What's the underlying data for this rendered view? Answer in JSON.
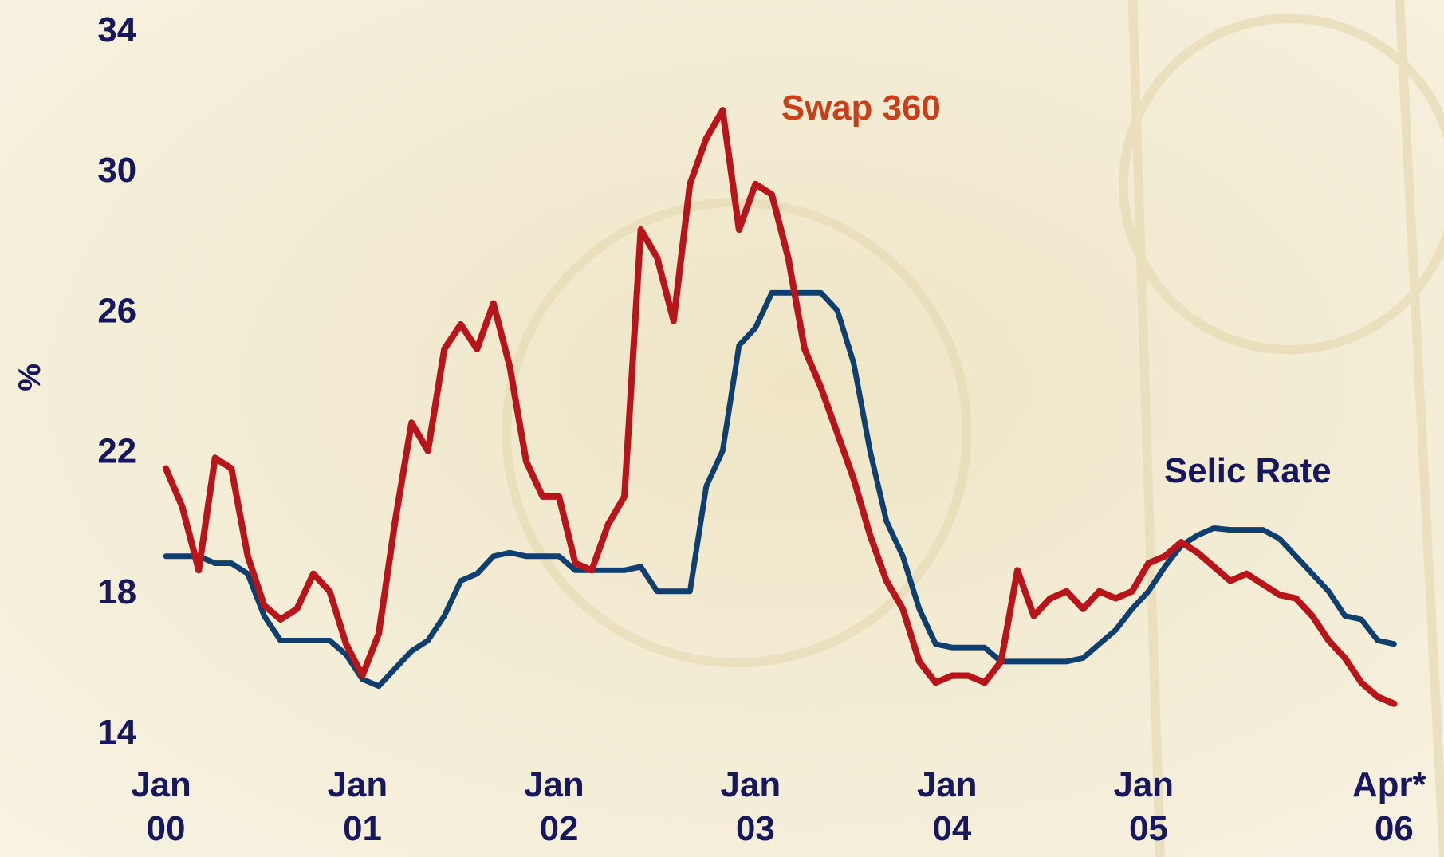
{
  "chart_data": {
    "type": "line",
    "y_label": "%",
    "categories": [
      "Jan 00",
      null,
      null,
      null,
      null,
      null,
      null,
      null,
      null,
      null,
      null,
      null,
      "Jan 01",
      null,
      null,
      null,
      null,
      null,
      null,
      null,
      null,
      null,
      null,
      null,
      "Jan 02",
      null,
      null,
      null,
      null,
      null,
      null,
      null,
      null,
      null,
      null,
      null,
      "Jan 03",
      null,
      null,
      null,
      null,
      null,
      null,
      null,
      null,
      null,
      null,
      null,
      "Jan 04",
      null,
      null,
      null,
      null,
      null,
      null,
      null,
      null,
      null,
      null,
      null,
      "Jan 05",
      null,
      null,
      null,
      null,
      null,
      null,
      null,
      null,
      null,
      null,
      null,
      null,
      null,
      null,
      "Apr* 06"
    ],
    "series": [
      {
        "name": "Selic Rate",
        "color": "#0e3f6e",
        "label_color": "#17175e",
        "values": [
          19,
          19,
          19,
          18.8,
          18.8,
          18.5,
          17.3,
          16.6,
          16.6,
          16.6,
          16.6,
          16.2,
          15.5,
          15.3,
          15.8,
          16.3,
          16.6,
          17.3,
          18.3,
          18.5,
          19,
          19.1,
          19,
          19,
          19,
          18.6,
          18.6,
          18.6,
          18.6,
          18.7,
          18,
          18,
          18,
          21,
          22,
          25,
          25.5,
          26.5,
          26.5,
          26.5,
          26.5,
          26,
          24.5,
          22,
          20,
          19,
          17.5,
          16.5,
          16.4,
          16.4,
          16.4,
          16,
          16,
          16,
          16,
          16,
          16.1,
          16.5,
          16.9,
          17.5,
          18,
          18.7,
          19.3,
          19.6,
          19.8,
          19.75,
          19.75,
          19.75,
          19.5,
          19,
          18.5,
          18,
          17.3,
          17.2,
          16.6,
          16.5
        ]
      },
      {
        "name": "Swap 360",
        "color": "#b8151b",
        "label_color": "#c8401a",
        "values": [
          21.5,
          20.4,
          18.6,
          21.8,
          21.5,
          19,
          17.6,
          17.2,
          17.5,
          18.5,
          18,
          16.5,
          15.6,
          16.8,
          20,
          22.8,
          22,
          24.9,
          25.6,
          24.9,
          26.2,
          24.4,
          21.7,
          20.7,
          20.7,
          18.8,
          18.6,
          19.9,
          20.7,
          28.3,
          27.5,
          25.7,
          29.6,
          30.9,
          31.7,
          28.3,
          29.6,
          29.3,
          27.5,
          24.9,
          23.8,
          22.5,
          21.2,
          19.6,
          18.3,
          17.5,
          16,
          15.4,
          15.6,
          15.6,
          15.4,
          16,
          18.6,
          17.3,
          17.8,
          18,
          17.5,
          18,
          17.8,
          18,
          18.8,
          19,
          19.4,
          19.1,
          18.7,
          18.3,
          18.5,
          18.2,
          17.9,
          17.8,
          17.3,
          16.6,
          16.1,
          15.4,
          15,
          14.8
        ]
      }
    ],
    "ylim": [
      14,
      34
    ],
    "yticks": [
      14,
      18,
      22,
      26,
      30,
      34
    ],
    "grid": false
  }
}
